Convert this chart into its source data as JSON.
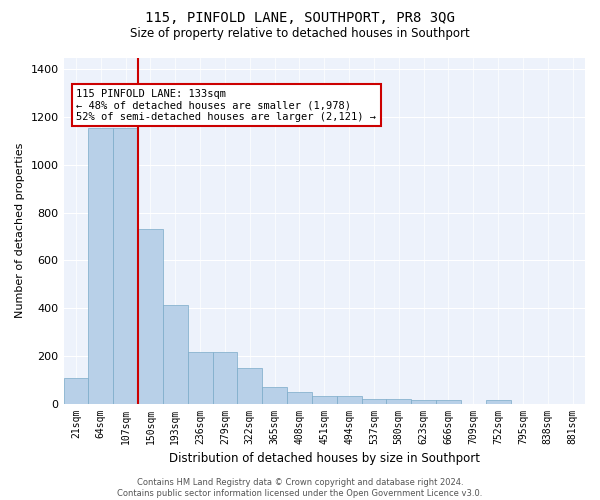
{
  "title": "115, PINFOLD LANE, SOUTHPORT, PR8 3QG",
  "subtitle": "Size of property relative to detached houses in Southport",
  "xlabel": "Distribution of detached houses by size in Southport",
  "ylabel": "Number of detached properties",
  "categories": [
    "21sqm",
    "64sqm",
    "107sqm",
    "150sqm",
    "193sqm",
    "236sqm",
    "279sqm",
    "322sqm",
    "365sqm",
    "408sqm",
    "451sqm",
    "494sqm",
    "537sqm",
    "580sqm",
    "623sqm",
    "666sqm",
    "709sqm",
    "752sqm",
    "795sqm",
    "838sqm",
    "881sqm"
  ],
  "bar_heights": [
    105,
    1155,
    1155,
    730,
    415,
    215,
    215,
    148,
    70,
    48,
    30,
    30,
    18,
    18,
    15,
    15,
    0,
    15,
    0,
    0,
    0
  ],
  "highlight_color": "#cc0000",
  "bar_color": "#b8d0e8",
  "bar_edge_color": "#7aaac8",
  "background_color": "#edf2fb",
  "grid_color": "#d0d8e8",
  "annotation_text": "115 PINFOLD LANE: 133sqm\n← 48% of detached houses are smaller (1,978)\n52% of semi-detached houses are larger (2,121) →",
  "footer_line1": "Contains HM Land Registry data © Crown copyright and database right 2024.",
  "footer_line2": "Contains public sector information licensed under the Open Government Licence v3.0.",
  "ylim": [
    0,
    1450
  ],
  "yticks": [
    0,
    200,
    400,
    600,
    800,
    1000,
    1200,
    1400
  ],
  "vline_index": 3,
  "highlight_bar_indices": [
    1,
    2
  ]
}
